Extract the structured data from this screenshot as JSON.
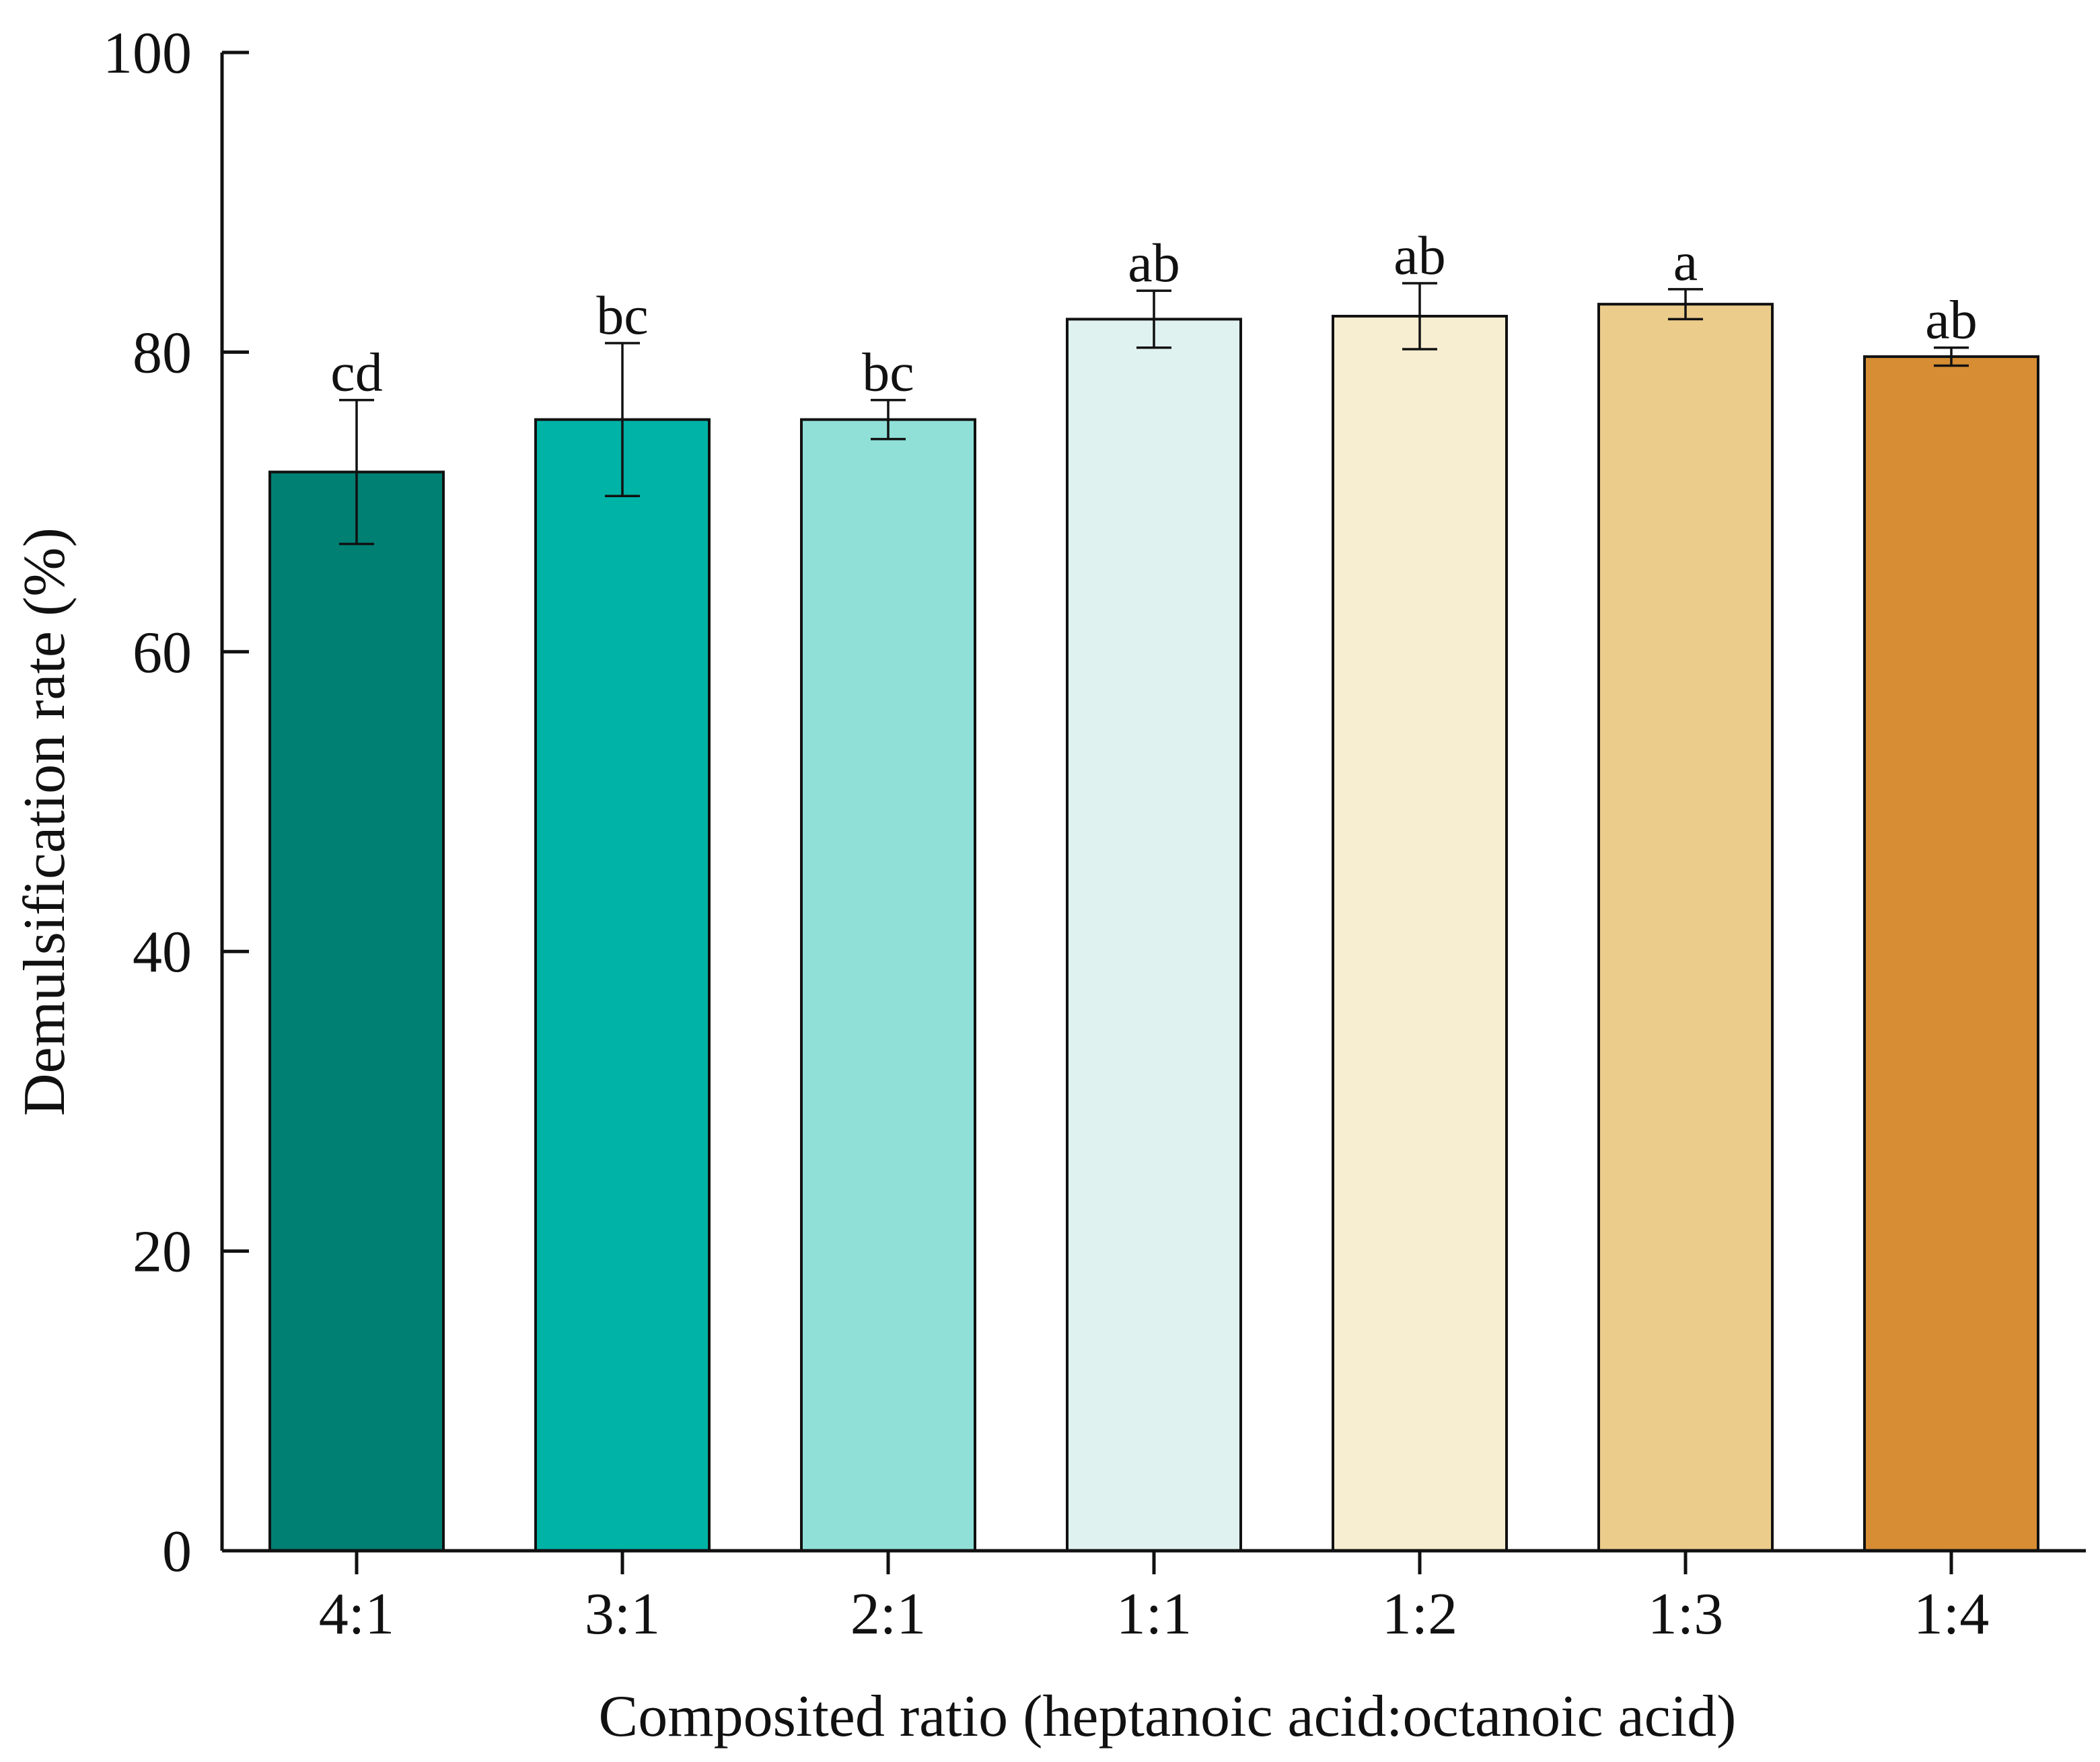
{
  "chart_data": {
    "type": "bar",
    "title": "",
    "xlabel": "Composited ratio (heptanoic acid:octanoic acid)",
    "ylabel": "Demulsification rate (%)",
    "ylim": [
      0,
      100
    ],
    "yticks": [
      0,
      20,
      40,
      60,
      80,
      100
    ],
    "categories": [
      "4:1",
      "3:1",
      "2:1",
      "1:1",
      "1:2",
      "1:3",
      "1:4"
    ],
    "values": [
      72.0,
      75.5,
      75.5,
      82.2,
      82.4,
      83.2,
      79.7
    ],
    "errors": [
      4.8,
      5.1,
      1.3,
      1.9,
      2.2,
      1.0,
      0.6
    ],
    "significance": [
      "cd",
      "bc",
      "bc",
      "ab",
      "ab",
      "a",
      "ab"
    ],
    "colors": [
      "#007f73",
      "#00b3a7",
      "#90e0d8",
      "#dff2ef",
      "#f7edd0",
      "#ebcc8b",
      "#d68d33"
    ],
    "grid": false,
    "legend": "none"
  }
}
